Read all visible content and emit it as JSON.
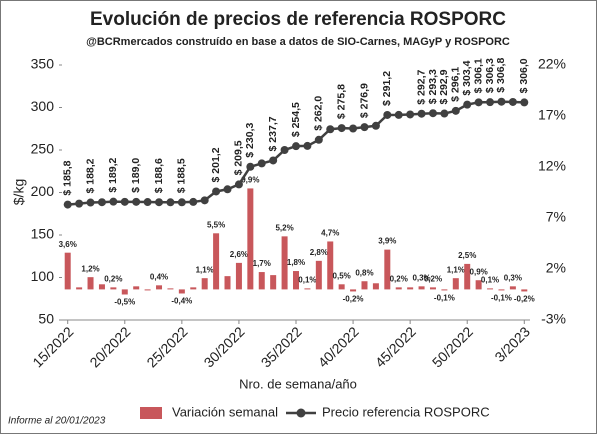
{
  "chart_data": {
    "type": "combo",
    "title": "Evolución de precios de referencia ROSPORC",
    "subtitle": "@BCRmercados construído en base a datos de SIO-Carnes, MAGyP y ROSPORC",
    "y_label": "$/kg",
    "x_label": "Nro. de semana/año",
    "note": "Informe al 20/01/2023",
    "categories": [
      "15/2022",
      null,
      null,
      null,
      null,
      "20/2022",
      null,
      null,
      null,
      null,
      "25/2022",
      null,
      null,
      null,
      null,
      "30/2022",
      null,
      null,
      null,
      null,
      "35/2022",
      null,
      null,
      null,
      null,
      "40/2022",
      null,
      null,
      null,
      null,
      "45/2022",
      null,
      null,
      null,
      null,
      "50/2022",
      null,
      null,
      null,
      null,
      "3/2023"
    ],
    "ylim": [
      50,
      350
    ],
    "yticks": [
      50,
      100,
      150,
      200,
      250,
      300,
      350
    ],
    "y2lim": [
      -3,
      22
    ],
    "y2ticks": [
      {
        "value": -3,
        "label": "-3%"
      },
      {
        "value": 2,
        "label": "2%"
      },
      {
        "value": 7,
        "label": "7%"
      },
      {
        "value": 12,
        "label": "12%"
      },
      {
        "value": 17,
        "label": "17%"
      },
      {
        "value": 22,
        "label": "22%"
      }
    ],
    "grid": false,
    "legend": "bottom",
    "series": [
      {
        "name": "Variación semanal",
        "type": "bar",
        "axis": "y2",
        "color": "#c8575b",
        "values": [
          3.6,
          0.2,
          1.2,
          0.5,
          0.2,
          -0.5,
          0.3,
          -0.1,
          0.4,
          0.1,
          -0.4,
          0.2,
          1.1,
          5.5,
          1.3,
          2.6,
          9.9,
          1.7,
          1.4,
          5.2,
          1.8,
          0.1,
          2.8,
          4.7,
          0.5,
          -0.2,
          0.8,
          0.6,
          3.9,
          0.2,
          0.2,
          0.3,
          0.2,
          -0.1,
          1.1,
          2.5,
          0.9,
          0.1,
          -0.1,
          0.3,
          -0.2
        ],
        "value_labels": [
          "3,6%",
          null,
          "1,2%",
          null,
          "0,2%",
          "-0,5%",
          null,
          null,
          "0,4%",
          null,
          "-0,4%",
          null,
          "1,1%",
          "5,5%",
          null,
          "2,6%",
          "9,9%",
          "1,7%",
          null,
          "5,2%",
          "1,8%",
          "0,1%",
          "2,8%",
          "4,7%",
          "0,5%",
          "-0,2%",
          "0,8%",
          null,
          "3,9%",
          "0,2%",
          null,
          "0,3%",
          "0,2%",
          "-0,1%",
          "1,1%",
          "2,5%",
          "0,9%",
          "0,1%",
          "-0,1%",
          "0,3%",
          "-0,2%"
        ]
      },
      {
        "name": "Precio referencia ROSPORC",
        "type": "line",
        "color": "#404040",
        "values": [
          185.8,
          186.9,
          188.2,
          188.6,
          189.2,
          189.0,
          189.0,
          188.8,
          188.6,
          188.5,
          188.5,
          188.9,
          190.8,
          201.2,
          203.8,
          209.5,
          230.3,
          234.2,
          237.7,
          250.0,
          254.5,
          254.8,
          262.0,
          274.4,
          275.8,
          275.3,
          276.9,
          278.5,
          291.2,
          291.3,
          291.8,
          292.7,
          293.3,
          292.9,
          296.1,
          303.4,
          306.1,
          306.3,
          306.8,
          306.5,
          306.0
        ],
        "value_labels": [
          "$ 185,8",
          null,
          "$ 188,2",
          null,
          "$ 189,2",
          null,
          "$ 189,0",
          null,
          "$ 188,6",
          null,
          "$ 188,5",
          null,
          null,
          "$ 201,2",
          null,
          "$ 209,5",
          "$ 230,3",
          null,
          "$ 237,7",
          null,
          "$ 254,5",
          null,
          "$ 262,0",
          null,
          "$ 275,8",
          null,
          "$ 276,9",
          null,
          "$ 291,2",
          null,
          null,
          "$ 292,7",
          "$ 293,3",
          "$ 292,9",
          "$ 296,1",
          "$ 303,4",
          "$ 306,1",
          "$ 306,3",
          "$ 306,8",
          null,
          "$ 306,0"
        ]
      }
    ]
  }
}
